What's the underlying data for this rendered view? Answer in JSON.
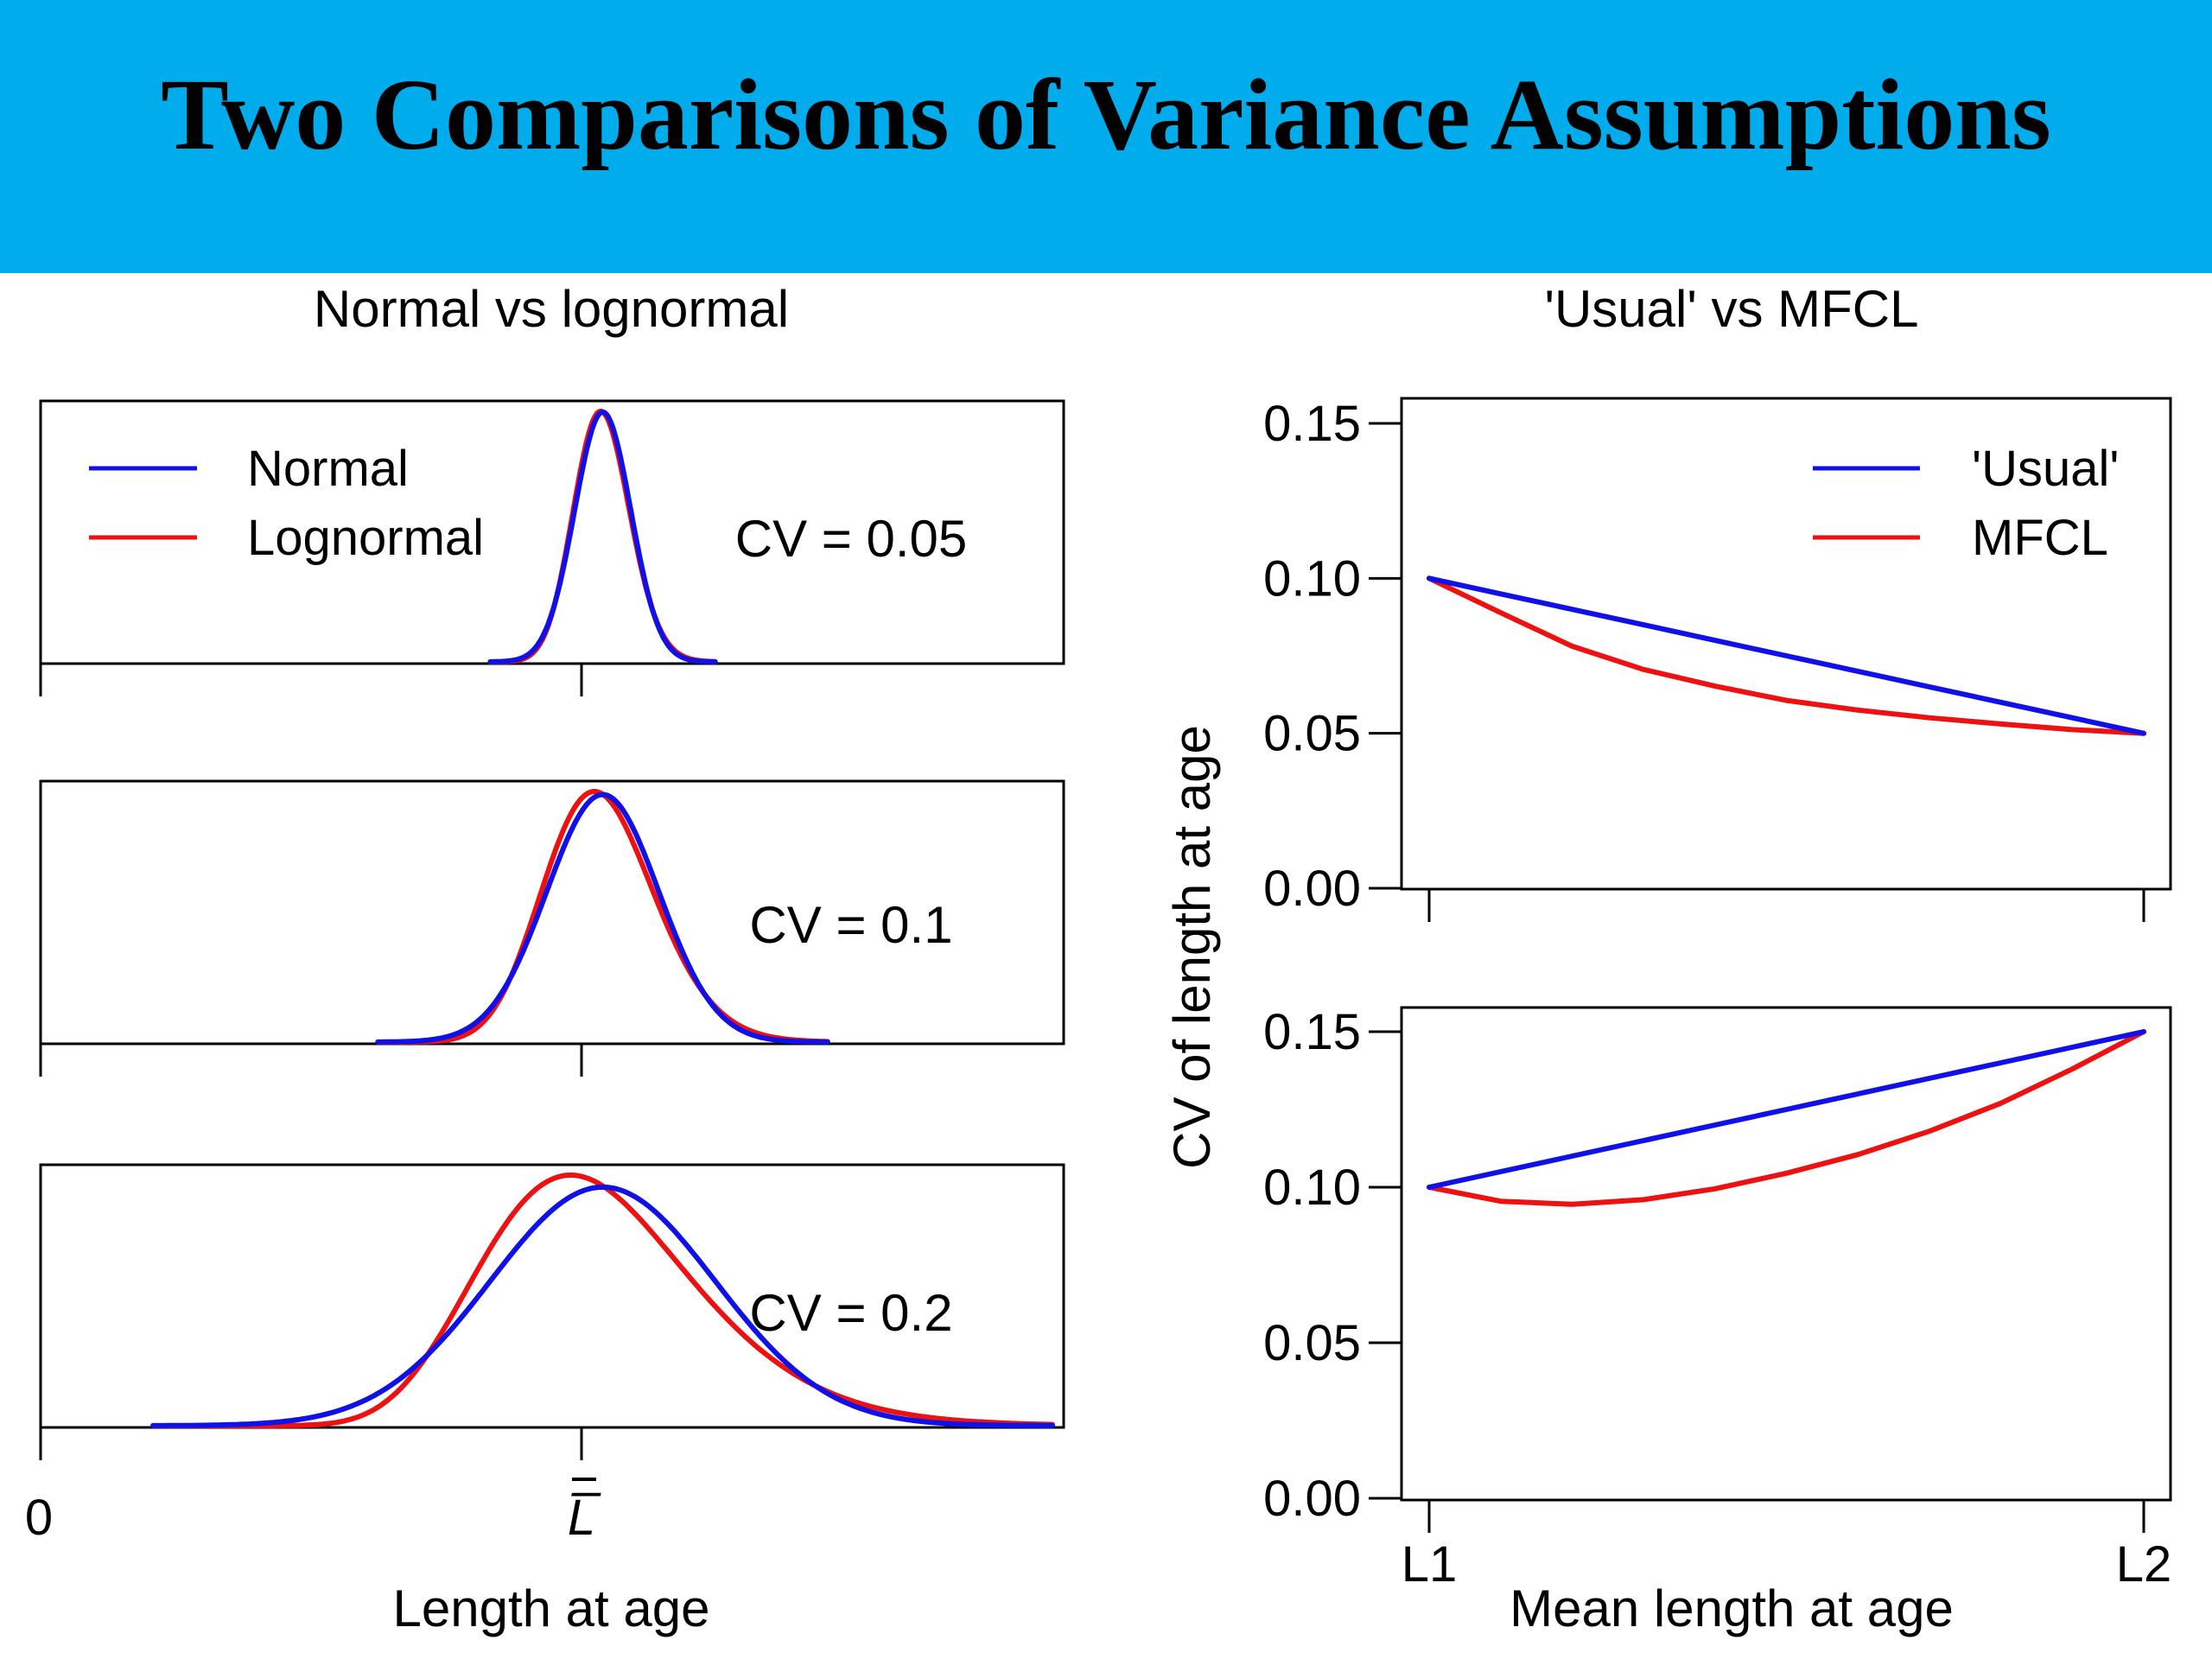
{
  "header": {
    "title": "Two Comparisons of Variance Assumptions"
  },
  "colors": {
    "banner": "#00acec",
    "series_blue": "#1010e8",
    "series_red": "#ee1111"
  },
  "chart_data": [
    {
      "type": "line",
      "panel": "normal-vs-lognormal",
      "title": "Normal vs lognormal",
      "xlabel": "Length at age",
      "ylabel": "",
      "x_tick_labels": [
        "0",
        "L̅"
      ],
      "mean_length": 1.0,
      "xlim": [
        0,
        1.82
      ],
      "legend": {
        "placement": "top-left",
        "entries": [
          "Normal",
          "Lognormal"
        ]
      },
      "series": [
        {
          "name": "Normal",
          "color": "#1010e8",
          "distribution": "normal"
        },
        {
          "name": "Lognormal",
          "color": "#ee1111",
          "distribution": "lognormal"
        }
      ],
      "subplots": [
        {
          "cv": 0.05,
          "annotation": "CV = 0.05",
          "x_range": [
            0.8,
            1.2
          ]
        },
        {
          "cv": 0.1,
          "annotation": "CV = 0.1",
          "x_range": [
            0.6,
            1.4
          ]
        },
        {
          "cv": 0.2,
          "annotation": "CV = 0.2",
          "x_range": [
            0.2,
            1.8
          ]
        }
      ]
    },
    {
      "type": "line",
      "panel": "usual-vs-mfcl",
      "title": "'Usual' vs MFCL",
      "xlabel": "Mean length at age",
      "ylabel": "CV of length at age",
      "x_tick_labels": [
        "L1",
        "L2"
      ],
      "y_tick_labels": [
        "0.00",
        "0.05",
        "0.10",
        "0.15"
      ],
      "ylim": [
        0,
        0.15
      ],
      "legend": {
        "placement": "top-right",
        "entries": [
          "'Usual'",
          "MFCL"
        ]
      },
      "subplots": [
        {
          "x": [
            0,
            0.1,
            0.2,
            0.3,
            0.4,
            0.5,
            0.6,
            0.7,
            0.8,
            0.9,
            1.0
          ],
          "series": [
            {
              "name": "'Usual'",
              "color": "#1010e8",
              "values": [
                0.1,
                0.095,
                0.09,
                0.085,
                0.08,
                0.075,
                0.07,
                0.065,
                0.06,
                0.055,
                0.05
              ]
            },
            {
              "name": "MFCL",
              "color": "#ee1111",
              "values": [
                0.1,
                0.0889,
                0.0781,
                0.0706,
                0.0652,
                0.0606,
                0.0575,
                0.055,
                0.053,
                0.0512,
                0.05
              ]
            }
          ]
        },
        {
          "x": [
            0,
            0.1,
            0.2,
            0.3,
            0.4,
            0.5,
            0.6,
            0.7,
            0.8,
            0.9,
            1.0
          ],
          "series": [
            {
              "name": "'Usual'",
              "color": "#1010e8",
              "values": [
                0.1,
                0.105,
                0.11,
                0.115,
                0.12,
                0.125,
                0.13,
                0.135,
                0.14,
                0.145,
                0.15
              ]
            },
            {
              "name": "MFCL",
              "color": "#ee1111",
              "values": [
                0.1,
                0.0955,
                0.0945,
                0.096,
                0.0995,
                0.1045,
                0.1105,
                0.118,
                0.127,
                0.138,
                0.15
              ]
            }
          ]
        }
      ]
    }
  ]
}
